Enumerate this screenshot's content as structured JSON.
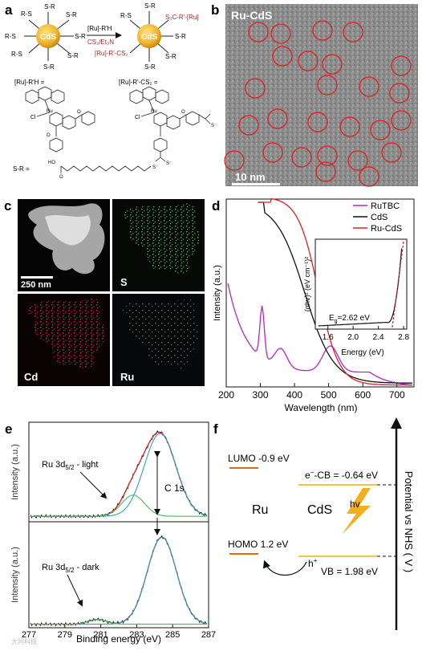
{
  "panels": {
    "a": {
      "letter": "a",
      "core_label": "CdS",
      "ligand": "S-R",
      "ligand_right": "S-R",
      "ligand_left": "R-S",
      "ligand_mod": "S₂C-R'-[Ru]",
      "reaction_line1": "[Ru]-R'H",
      "reaction_line2": "CS₂/Et₃N",
      "mod_left": "[Ru]-R'-CS₂",
      "def_left": "[Ru]-R'H =",
      "def_right": "[Ru]-R'-CS₂ =",
      "sr_def": "S-R =",
      "cl": "Cl",
      "ru": "Ru",
      "o": "O",
      "s_minus": "S⁻",
      "ho": "HO"
    },
    "b": {
      "letter": "b",
      "title": "Ru-CdS",
      "scalebar": "10 nm"
    },
    "c": {
      "letter": "c",
      "scalebar": "250 nm",
      "labels": [
        "S",
        "Cd",
        "Ru"
      ]
    },
    "d": {
      "letter": "d",
      "ylabel": "Intensity (a.u.)",
      "xlabel": "Wavelength (nm)",
      "xticks": [
        "200",
        "300",
        "400",
        "500",
        "600",
        "700"
      ],
      "legend": [
        "RuTBC",
        "CdS",
        "Ru-CdS"
      ],
      "colors": [
        "#bb22cc",
        "#111111",
        "#e02020"
      ],
      "inset": {
        "ylabel": "(αhv)² (eV cm⁻¹)²",
        "xlabel": "Energy (eV)",
        "xticks": [
          "1.6",
          "2.0",
          "2.4",
          "2.8"
        ],
        "eg_label": "E",
        "eg_sub": "g",
        "eg_value": "=2.62 eV"
      }
    },
    "e": {
      "letter": "e",
      "ylabel": "Intensity (a.u.)",
      "xlabel": "Binding energy (eV)",
      "xticks": [
        "277",
        "279",
        "281",
        "283",
        "285",
        "287"
      ],
      "label_light": "Ru 3d",
      "label_light_sub": "5/2",
      "label_light_tail": " - light",
      "label_dark": "Ru 3d",
      "label_dark_sub": "5/2",
      "label_dark_tail": " - dark",
      "c1s": "C 1s"
    },
    "f": {
      "letter": "f",
      "lumo": "LUMO -0.9 eV",
      "homo": "HOMO 1.2 eV",
      "cb_prefix": "e",
      "cb_rest": "-CB = -0.64 eV",
      "vb": "VB = 1.98 eV",
      "hole": "h",
      "hv": "hv",
      "ru": "Ru",
      "cds": "CdS",
      "axis": "Potential vs NHS ( V )"
    }
  },
  "watermark": "大同科技"
}
